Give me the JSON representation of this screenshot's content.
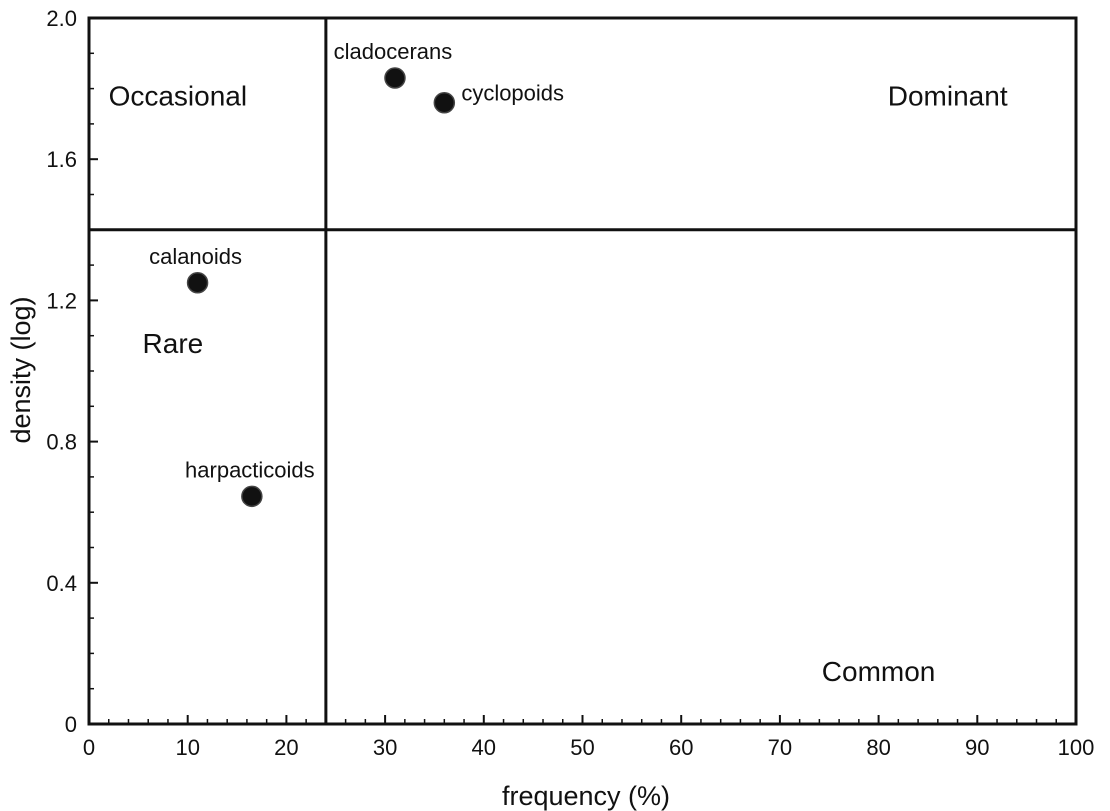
{
  "chart_data": {
    "type": "scatter",
    "xlabel": "frequency (%)",
    "ylabel": "density (log)",
    "xlim": [
      0,
      100
    ],
    "ylim": [
      0,
      2.0
    ],
    "xticks": [
      0,
      10,
      20,
      30,
      40,
      50,
      60,
      70,
      80,
      90,
      100
    ],
    "yticks": [
      0,
      0.4,
      0.8,
      1.2,
      1.6,
      2.0
    ],
    "ytick_labels": [
      "0",
      "0.4",
      "0.8",
      "1.2",
      "1.6",
      "2.0"
    ],
    "xtick_labels": [
      "0",
      "10",
      "20",
      "30",
      "40",
      "50",
      "60",
      "70",
      "80",
      "90",
      "100"
    ],
    "grid": false,
    "divider_lines": {
      "x": 24,
      "y": 1.4
    },
    "points": [
      {
        "label": "cladocerans",
        "x": 31,
        "y": 1.83,
        "label_pos": "above"
      },
      {
        "label": "cyclopoids",
        "x": 36,
        "y": 1.76,
        "label_pos": "right"
      },
      {
        "label": "calanoids",
        "x": 11,
        "y": 1.25,
        "label_pos": "above"
      },
      {
        "label": "harpacticoids",
        "x": 16.5,
        "y": 0.645,
        "label_pos": "above"
      }
    ],
    "region_labels": [
      {
        "text": "Occasional",
        "x": 9,
        "y": 1.78
      },
      {
        "text": "Dominant",
        "x": 87,
        "y": 1.78
      },
      {
        "text": "Rare",
        "x": 8.5,
        "y": 1.08
      },
      {
        "text": "Common",
        "x": 80,
        "y": 0.15
      }
    ],
    "marker_color": "#111111"
  }
}
